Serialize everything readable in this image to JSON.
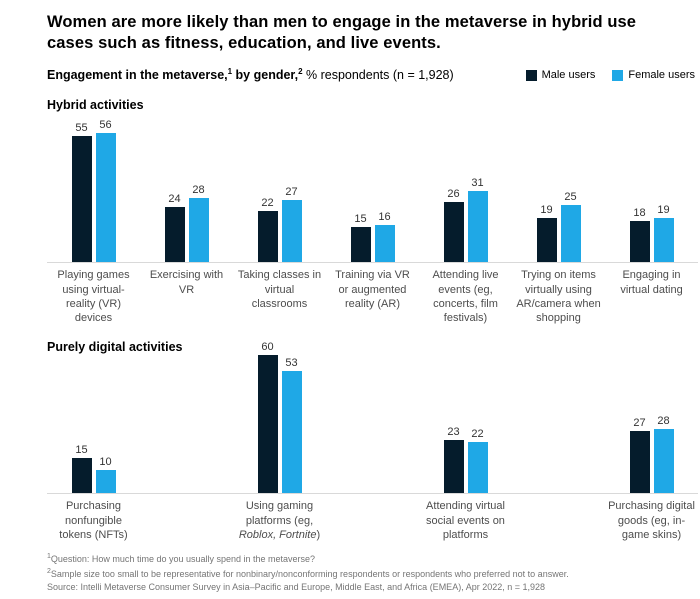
{
  "title": "Women are more likely than men to engage in the metaverse in hybrid use cases such as fitness, education, and live events.",
  "subtitle": {
    "bold_1": "Engagement in the metaverse,",
    "sup_1": "1",
    "bold_2": " by gender,",
    "sup_2": "2",
    "normal": " % respondents (n = 1,928)"
  },
  "legend": [
    {
      "label": "Male users",
      "color": "#051c2c"
    },
    {
      "label": "Female users",
      "color": "#1fa8e6"
    }
  ],
  "colors": {
    "male": "#051c2c",
    "female": "#1fa8e6",
    "baseline": "#d9d9d9"
  },
  "chart_data": {
    "type": "bar",
    "series": [
      "Male users",
      "Female users"
    ],
    "unit": "% respondents",
    "n": "1,928",
    "sections": [
      {
        "title": "Hybrid activities",
        "columns": 7,
        "groups": [
          {
            "col": 1,
            "label": "Playing games using virtual-reality (VR) devices",
            "male": 55,
            "female": 56
          },
          {
            "col": 2,
            "label": "Exercising with VR",
            "male": 24,
            "female": 28
          },
          {
            "col": 3,
            "label": "Taking classes in virtual classrooms",
            "male": 22,
            "female": 27
          },
          {
            "col": 4,
            "label": "Training via VR or augmented reality (AR)",
            "male": 15,
            "female": 16
          },
          {
            "col": 5,
            "label": "Attending live events (eg, concerts, film festivals)",
            "male": 26,
            "female": 31
          },
          {
            "col": 6,
            "label": "Trying on items virtually using AR/camera when shopping",
            "male": 19,
            "female": 25
          },
          {
            "col": 7,
            "label": "Engaging in virtual dating",
            "male": 18,
            "female": 19
          }
        ]
      },
      {
        "title": "Purely digital activities",
        "columns": 7,
        "groups": [
          {
            "col": 1,
            "label": "Purchasing nonfungible tokens (NFTs)",
            "male": 15,
            "female": 10
          },
          {
            "col": 3,
            "label": [
              {
                "t": "Using gaming platforms (eg, ",
                "i": false
              },
              {
                "t": "Roblox, Fortnite",
                "i": true
              },
              {
                "t": ")",
                "i": false
              }
            ],
            "male": 60,
            "female": 53
          },
          {
            "col": 5,
            "label": "Attending virtual social events on platforms",
            "male": 23,
            "female": 22
          },
          {
            "col": 7,
            "label": "Purchasing digital goods (eg, in-game skins)",
            "male": 27,
            "female": 28
          }
        ]
      }
    ]
  },
  "footnotes": {
    "fn1_sup": "1",
    "fn1": "Question: How much time do you usually spend in the metaverse?",
    "fn2_sup": "2",
    "fn2": "Sample size too small to be representative for nonbinary/nonconforming respondents or respondents who preferred not to answer.",
    "source": "Source: Intelli Metaverse Consumer Survey in Asia–Pacific and Europe, Middle East, and Africa (EMEA), Apr 2022, n = 1,928"
  }
}
